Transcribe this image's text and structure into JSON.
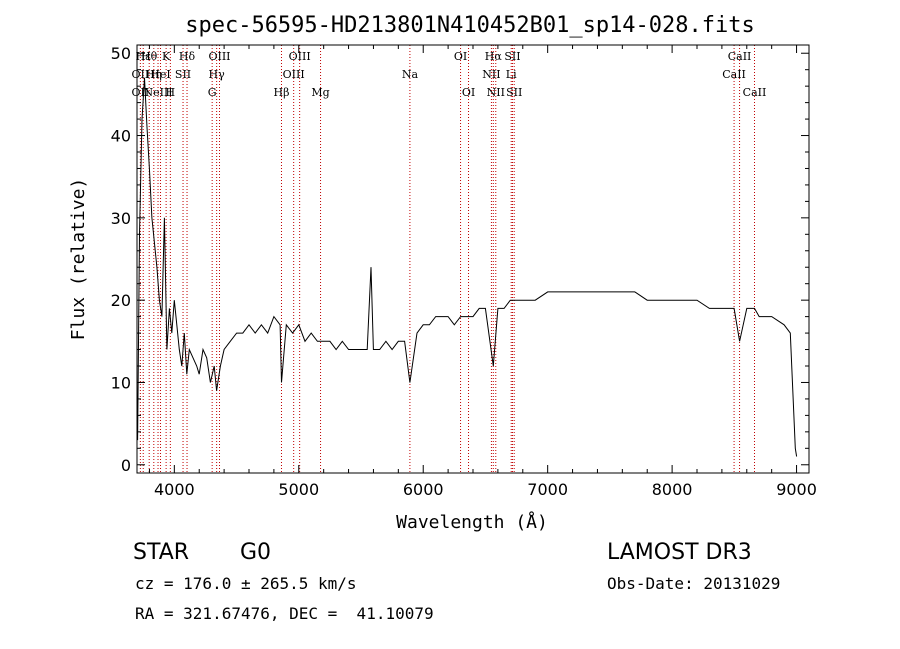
{
  "chart_data": {
    "type": "line",
    "title": "spec-56595-HD213801N410452B01_sp14-028.fits",
    "xlabel": "Wavelength (Å)",
    "ylabel": "Flux (relative)",
    "xlim": [
      3700,
      9100
    ],
    "ylim": [
      -1,
      51
    ],
    "xticks": [
      4000,
      5000,
      6000,
      7000,
      8000,
      9000
    ],
    "yticks": [
      0,
      10,
      20,
      30,
      40,
      50
    ],
    "series": [
      {
        "name": "flux",
        "x": [
          3705,
          3720,
          3740,
          3760,
          3780,
          3800,
          3820,
          3840,
          3860,
          3880,
          3900,
          3920,
          3940,
          3960,
          3980,
          4000,
          4020,
          4040,
          4060,
          4080,
          4100,
          4120,
          4150,
          4180,
          4200,
          4230,
          4260,
          4290,
          4320,
          4340,
          4370,
          4400,
          4450,
          4500,
          4550,
          4600,
          4650,
          4700,
          4750,
          4800,
          4850,
          4861,
          4900,
          4950,
          5000,
          5050,
          5100,
          5150,
          5200,
          5250,
          5300,
          5350,
          5400,
          5450,
          5500,
          5550,
          5580,
          5600,
          5650,
          5700,
          5750,
          5800,
          5850,
          5893,
          5950,
          6000,
          6050,
          6100,
          6150,
          6200,
          6250,
          6300,
          6350,
          6400,
          6450,
          6500,
          6563,
          6600,
          6650,
          6700,
          6750,
          6800,
          6900,
          7000,
          7100,
          7200,
          7300,
          7400,
          7500,
          7600,
          7700,
          7800,
          7900,
          8000,
          8100,
          8200,
          8300,
          8400,
          8498,
          8542,
          8600,
          8662,
          8700,
          8800,
          8900,
          8950,
          8990,
          9000
        ],
        "y": [
          3,
          28,
          42,
          47,
          41,
          36,
          30,
          27,
          24,
          20,
          18,
          30,
          14,
          19,
          16,
          20,
          17,
          14,
          12,
          16,
          11,
          14,
          13,
          12,
          11,
          14,
          13,
          10,
          12,
          9,
          12,
          14,
          15,
          16,
          16,
          17,
          16,
          17,
          16,
          18,
          17,
          10,
          17,
          16,
          17,
          15,
          16,
          15,
          15,
          15,
          14,
          15,
          14,
          14,
          14,
          14,
          24,
          14,
          14,
          15,
          14,
          15,
          15,
          10,
          16,
          17,
          17,
          18,
          18,
          18,
          17,
          18,
          18,
          18,
          19,
          19,
          12,
          19,
          19,
          20,
          20,
          20,
          20,
          21,
          21,
          21,
          21,
          21,
          21,
          21,
          21,
          20,
          20,
          20,
          20,
          20,
          19,
          19,
          19,
          15,
          19,
          19,
          18,
          18,
          17,
          16,
          2,
          1
        ]
      }
    ],
    "lines": [
      {
        "x": 3727,
        "label": "OII",
        "row": 1
      },
      {
        "x": 3727,
        "label": "OII",
        "row": 2
      },
      {
        "x": 3750,
        "label": "Hε",
        "row": 0
      },
      {
        "x": 3798,
        "label": "Hθ",
        "row": 0
      },
      {
        "x": 3835,
        "label": "Hη",
        "row": 1
      },
      {
        "x": 3869,
        "label": "NeIII",
        "row": 2
      },
      {
        "x": 3889,
        "label": "HeI",
        "row": 1
      },
      {
        "x": 3934,
        "label": "K",
        "row": 0
      },
      {
        "x": 3968,
        "label": "H",
        "row": 2
      },
      {
        "x": 4070,
        "label": "SII",
        "row": 1
      },
      {
        "x": 4102,
        "label": "Hδ",
        "row": 0
      },
      {
        "x": 4304,
        "label": "G",
        "row": 2
      },
      {
        "x": 4340,
        "label": "Hγ",
        "row": 1
      },
      {
        "x": 4363,
        "label": "OIII",
        "row": 0
      },
      {
        "x": 4861,
        "label": "Hβ",
        "row": 2
      },
      {
        "x": 4959,
        "label": "OIII",
        "row": 1
      },
      {
        "x": 5007,
        "label": "OIII",
        "row": 0
      },
      {
        "x": 5175,
        "label": "Mg",
        "row": 2
      },
      {
        "x": 5893,
        "label": "Na",
        "row": 1
      },
      {
        "x": 6300,
        "label": "OI",
        "row": 0
      },
      {
        "x": 6364,
        "label": "OI",
        "row": 2
      },
      {
        "x": 6548,
        "label": "NII",
        "row": 1
      },
      {
        "x": 6563,
        "label": "Hα",
        "row": 0
      },
      {
        "x": 6583,
        "label": "NII",
        "row": 2
      },
      {
        "x": 6707,
        "label": "Li",
        "row": 1
      },
      {
        "x": 6717,
        "label": "SII",
        "row": 0
      },
      {
        "x": 6731,
        "label": "SII",
        "row": 2
      },
      {
        "x": 8498,
        "label": "CaII",
        "row": 1
      },
      {
        "x": 8542,
        "label": "CaII",
        "row": 0
      },
      {
        "x": 8662,
        "label": "CaII",
        "row": 2
      }
    ]
  },
  "info": {
    "object_type": "STAR",
    "subclass": "G0",
    "survey": "LAMOST DR3",
    "cz": "cz = 176.0 ± 265.5 km/s",
    "obs_date": "Obs-Date: 20131029",
    "coords": "RA = 321.67476, DEC =  41.10079"
  }
}
